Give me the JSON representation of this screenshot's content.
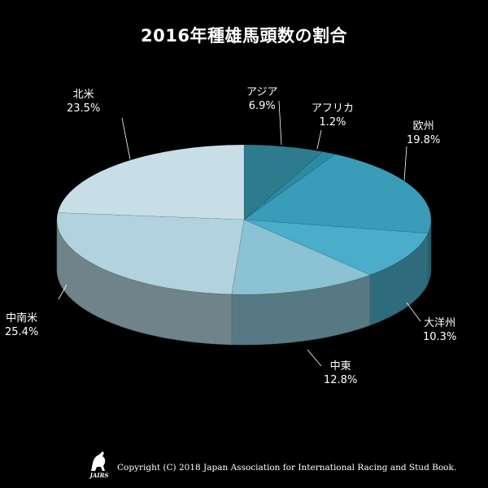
{
  "chart_data": {
    "type": "pie",
    "title": "2016年種雄馬頭数の割合",
    "slices": [
      {
        "label": "アジア",
        "value": 6.9,
        "display": "6.9%",
        "color": "#2f7b8e"
      },
      {
        "label": "アフリカ",
        "value": 1.2,
        "display": "1.2%",
        "color": "#2b8ba3"
      },
      {
        "label": "欧州",
        "value": 19.8,
        "display": "19.8%",
        "color": "#3a9cb8"
      },
      {
        "label": "大洋州",
        "value": 10.3,
        "display": "10.3%",
        "color": "#4aadc9"
      },
      {
        "label": "中東",
        "value": 12.8,
        "display": "12.8%",
        "color": "#8cc3d4"
      },
      {
        "label": "中南米",
        "value": 25.4,
        "display": "25.4%",
        "color": "#b1d3df"
      },
      {
        "label": "北米",
        "value": 23.5,
        "display": "23.5%",
        "color": "#c8dee6"
      }
    ],
    "style": "3d-pie"
  },
  "footer": {
    "logo_text": "JAIRS",
    "copyright": "Copyright (C) 2018 Japan Association for International Racing and Stud Book."
  }
}
